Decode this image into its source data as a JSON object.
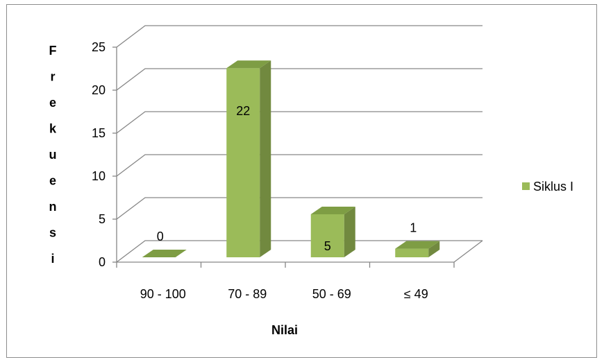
{
  "chart_data": {
    "type": "bar",
    "style": "3d-column",
    "title": "",
    "categories": [
      "90 - 100",
      "70 - 89",
      "50 - 69",
      "≤ 49"
    ],
    "series": [
      {
        "name": "Siklus I",
        "values": [
          0,
          22,
          5,
          1
        ],
        "data_labels": [
          "0",
          "22",
          "5",
          "1"
        ],
        "color": "#9bbb59",
        "side_color": "#71893f",
        "top_color": "#7e9d44"
      }
    ],
    "xlabel": "Nilai",
    "ylabel": "Frekuensi",
    "ylabel_letters": [
      "F",
      "r",
      "e",
      "k",
      "u",
      "e",
      "n",
      "s",
      "i"
    ],
    "ylim": [
      0,
      25
    ],
    "yticks": [
      0,
      5,
      10,
      15,
      20,
      25
    ],
    "grid": true,
    "legend_position": "right",
    "gridline_color": "#868686"
  }
}
